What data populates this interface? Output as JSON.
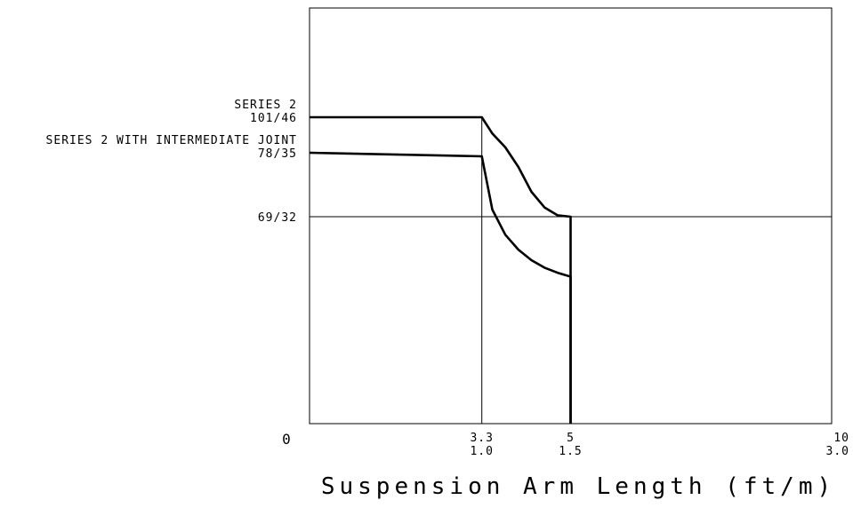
{
  "chart_data": {
    "type": "line",
    "xlabel": "Suspension Arm Length (ft/m)",
    "ylabel": "",
    "xlim": [
      0,
      10
    ],
    "ylim": [
      0,
      101
    ],
    "x_ticks": [
      {
        "value": 0,
        "label": "0",
        "label2": ""
      },
      {
        "value": 3.3,
        "label": "3.3",
        "label2": "1.0"
      },
      {
        "value": 5,
        "label": "5",
        "label2": "1.5"
      },
      {
        "value": 10,
        "label": "10",
        "label2": "3.0"
      }
    ],
    "y_ticks": [
      {
        "value": 101,
        "label": "101/46",
        "caption": "SERIES 2"
      },
      {
        "value": 78,
        "label": "78/35",
        "caption": "SERIES 2 WITH INTERMEDIATE JOINT"
      },
      {
        "value": 69,
        "label": "69/32",
        "caption": ""
      }
    ],
    "reference_lines": [
      {
        "orientation": "vertical",
        "value": 3.3
      },
      {
        "orientation": "horizontal",
        "value": 69
      }
    ],
    "series": [
      {
        "x": [
          0,
          3.3,
          3.5,
          3.75,
          4.0,
          4.25,
          4.5,
          4.75,
          5.0,
          5.0
        ],
        "y": [
          101,
          101,
          90.5,
          81.5,
          76.0,
          72.5,
          70.3,
          69.2,
          69,
          0
        ]
      },
      {
        "x": [
          0,
          3.3,
          3.5,
          3.75,
          4.0,
          4.25,
          4.5,
          4.75,
          5.0,
          5.0
        ],
        "y": [
          78,
          77.5,
          70.0,
          63.0,
          58.0,
          54.5,
          52.0,
          50.3,
          49,
          0
        ]
      }
    ]
  }
}
